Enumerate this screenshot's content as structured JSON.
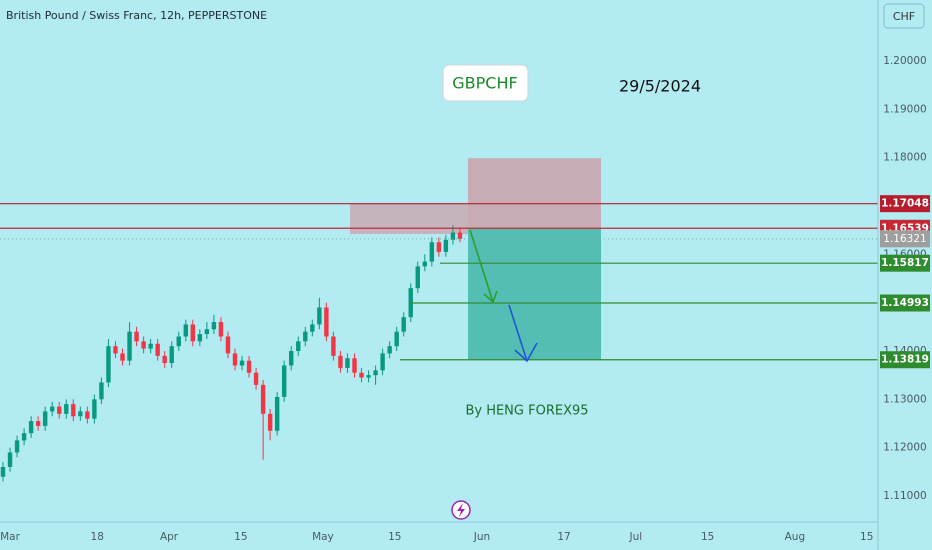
{
  "chart_data": {
    "type": "candlestick",
    "title": "British Pound / Swiss Franc, 12h, PEPPERSTONE",
    "currency": "CHF",
    "annotations": [
      "GBPCHF",
      "29/5/2024",
      "By HENG FOREX95"
    ],
    "up_color": "#089981",
    "down_color": "#f23645",
    "candles": [
      [
        1.114,
        1.117,
        1.113,
        1.116
      ],
      [
        1.116,
        1.12,
        1.115,
        1.119
      ],
      [
        1.119,
        1.1225,
        1.118,
        1.1215
      ],
      [
        1.1215,
        1.124,
        1.1205,
        1.123
      ],
      [
        1.123,
        1.1265,
        1.122,
        1.1255
      ],
      [
        1.1255,
        1.1265,
        1.1235,
        1.1245
      ],
      [
        1.1245,
        1.1285,
        1.1235,
        1.1275
      ],
      [
        1.1275,
        1.1295,
        1.1265,
        1.1285
      ],
      [
        1.1285,
        1.1295,
        1.126,
        1.127
      ],
      [
        1.127,
        1.13,
        1.126,
        1.129
      ],
      [
        1.129,
        1.13,
        1.1255,
        1.1265
      ],
      [
        1.1265,
        1.1285,
        1.1255,
        1.1275
      ],
      [
        1.1275,
        1.1285,
        1.125,
        1.126
      ],
      [
        1.126,
        1.131,
        1.125,
        1.13
      ],
      [
        1.13,
        1.1345,
        1.129,
        1.1335
      ],
      [
        1.1335,
        1.1425,
        1.1325,
        1.141
      ],
      [
        1.141,
        1.142,
        1.1385,
        1.1395
      ],
      [
        1.1395,
        1.1405,
        1.137,
        1.138
      ],
      [
        1.138,
        1.146,
        1.137,
        1.144
      ],
      [
        1.144,
        1.145,
        1.141,
        1.142
      ],
      [
        1.142,
        1.143,
        1.1395,
        1.1405
      ],
      [
        1.1405,
        1.1425,
        1.1395,
        1.1415
      ],
      [
        1.1415,
        1.1425,
        1.138,
        1.139
      ],
      [
        1.139,
        1.14,
        1.1365,
        1.1375
      ],
      [
        1.1375,
        1.142,
        1.1365,
        1.141
      ],
      [
        1.141,
        1.144,
        1.14,
        1.143
      ],
      [
        1.143,
        1.1465,
        1.142,
        1.1455
      ],
      [
        1.1455,
        1.1465,
        1.141,
        1.142
      ],
      [
        1.142,
        1.1445,
        1.141,
        1.1435
      ],
      [
        1.1435,
        1.146,
        1.1425,
        1.1445
      ],
      [
        1.1445,
        1.1475,
        1.1435,
        1.146
      ],
      [
        1.146,
        1.147,
        1.142,
        1.143
      ],
      [
        1.143,
        1.144,
        1.1385,
        1.1395
      ],
      [
        1.1395,
        1.1405,
        1.136,
        1.137
      ],
      [
        1.137,
        1.139,
        1.136,
        1.138
      ],
      [
        1.138,
        1.139,
        1.1345,
        1.1355
      ],
      [
        1.1355,
        1.1365,
        1.132,
        1.133
      ],
      [
        1.133,
        1.134,
        1.1175,
        1.127
      ],
      [
        1.127,
        1.128,
        1.1215,
        1.1235
      ],
      [
        1.1235,
        1.1315,
        1.1225,
        1.1305
      ],
      [
        1.1305,
        1.138,
        1.1295,
        1.137
      ],
      [
        1.137,
        1.141,
        1.136,
        1.14
      ],
      [
        1.14,
        1.143,
        1.139,
        1.142
      ],
      [
        1.142,
        1.145,
        1.141,
        1.144
      ],
      [
        1.144,
        1.1465,
        1.143,
        1.1455
      ],
      [
        1.1455,
        1.151,
        1.1445,
        1.149
      ],
      [
        1.149,
        1.15,
        1.142,
        1.143
      ],
      [
        1.143,
        1.144,
        1.138,
        1.139
      ],
      [
        1.139,
        1.14,
        1.1355,
        1.1365
      ],
      [
        1.1365,
        1.1395,
        1.1355,
        1.1385
      ],
      [
        1.1385,
        1.1395,
        1.1345,
        1.1355
      ],
      [
        1.1355,
        1.1365,
        1.1335,
        1.1345
      ],
      [
        1.1345,
        1.136,
        1.1335,
        1.135
      ],
      [
        1.135,
        1.137,
        1.133,
        1.136
      ],
      [
        1.136,
        1.1405,
        1.135,
        1.1395
      ],
      [
        1.1395,
        1.142,
        1.1385,
        1.141
      ],
      [
        1.141,
        1.145,
        1.14,
        1.144
      ],
      [
        1.144,
        1.148,
        1.143,
        1.147
      ],
      [
        1.147,
        1.154,
        1.146,
        1.153
      ],
      [
        1.153,
        1.1585,
        1.152,
        1.1575
      ],
      [
        1.1575,
        1.16,
        1.1565,
        1.1585
      ],
      [
        1.1585,
        1.1635,
        1.1575,
        1.1625
      ],
      [
        1.1625,
        1.1635,
        1.1595,
        1.1605
      ],
      [
        1.1605,
        1.164,
        1.1595,
        1.163
      ],
      [
        1.163,
        1.166,
        1.162,
        1.1645
      ],
      [
        1.1645,
        1.1655,
        1.1625,
        1.1632
      ]
    ],
    "ylim": [
      1.10462,
      1.21262
    ],
    "yticks": [
      {
        "value": 1.11,
        "label": "1.11000"
      },
      {
        "value": 1.12,
        "label": "1.12000"
      },
      {
        "value": 1.13,
        "label": "1.13000"
      },
      {
        "value": 1.14,
        "label": "1.14000"
      },
      {
        "value": 1.16,
        "label": "1.16000"
      },
      {
        "value": 1.18,
        "label": "1.18000"
      },
      {
        "value": 1.19,
        "label": "1.19000"
      },
      {
        "value": 1.2,
        "label": "1.20000"
      }
    ],
    "xlim": [
      -1.95,
      169.2
    ],
    "xticks": [
      {
        "value": 0,
        "label": "Mar"
      },
      {
        "value": 17,
        "label": "18"
      },
      {
        "value": 31,
        "label": "Apr"
      },
      {
        "value": 45,
        "label": "15"
      },
      {
        "value": 61,
        "label": "May"
      },
      {
        "value": 75,
        "label": "15"
      },
      {
        "value": 92,
        "label": "Jun"
      },
      {
        "value": 108,
        "label": "17"
      },
      {
        "value": 122,
        "label": "Jul"
      },
      {
        "value": 136,
        "label": "15"
      },
      {
        "value": 153,
        "label": "Aug"
      },
      {
        "value": 167,
        "label": "15"
      }
    ],
    "levels": [
      {
        "value": 1.17048,
        "color": "#b71c2c"
      },
      {
        "value": 1.16539,
        "color": "#c62834"
      },
      {
        "value": 1.15817,
        "color": "#2e8b2e"
      },
      {
        "value": 1.14993,
        "color": "#2e8b2e"
      },
      {
        "value": 1.13819,
        "color": "#2e8b2e"
      }
    ],
    "last_price": {
      "value": 1.16321,
      "color": "#9e9e9e"
    },
    "zones": [
      {
        "top": 1.1799,
        "bottom": 1.16539,
        "color": "rgba(242,54,69,0.35)"
      },
      {
        "top": 1.16539,
        "bottom": 1.13819,
        "color": "rgba(8,153,129,0.55)"
      },
      {
        "top": 1.17048,
        "bottom": 1.1642,
        "color": "rgba(242,54,69,0.3)"
      }
    ],
    "grid": false
  }
}
